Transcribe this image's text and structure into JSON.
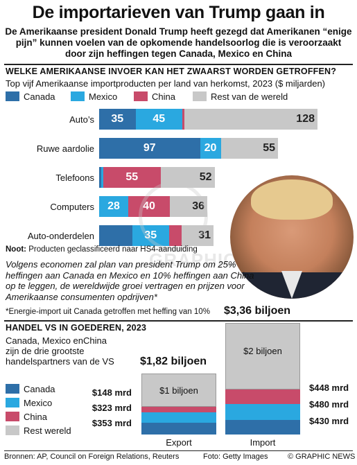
{
  "header": {
    "title": "De importarieven van Trump gaan in",
    "subtitle": "De Amerikaanse president Donald Trump heeft gezegd dat Amerikanen “enige pijn” kunnen voelen van de opkomende handelsoorlog die is veroorzaakt door zijn heffingen tegen Canada, Mexico en China"
  },
  "colors": {
    "canada": "#2e6fa8",
    "mexico": "#2aa8e0",
    "china": "#c84b6a",
    "rest": "#c8c8c8"
  },
  "chart_data": [
    {
      "type": "bar",
      "orientation": "horizontal",
      "stacked": true,
      "title": "Welke Amerikaanse invoer kan het zwaarst worden getroffen?",
      "subtitle": "Top vijf Amerikaanse importproducten per land van herkomst, 2023 ($ miljarden)",
      "categories": [
        "Auto’s",
        "Ruwe aardolie",
        "Telefoons",
        "Computers",
        "Auto-onderdelen"
      ],
      "series": [
        {
          "name": "Canada",
          "values": [
            35,
            97,
            2,
            0,
            32
          ],
          "labels": [
            "35",
            "97",
            "",
            "",
            ""
          ]
        },
        {
          "name": "Mexico",
          "values": [
            45,
            20,
            2,
            28,
            35
          ],
          "labels": [
            "45",
            "20",
            "",
            "28",
            "35"
          ]
        },
        {
          "name": "China",
          "values": [
            2,
            0,
            55,
            40,
            12
          ],
          "labels": [
            "",
            "",
            "55",
            "40",
            ""
          ]
        },
        {
          "name": "Rest van de wereld",
          "values": [
            128,
            55,
            52,
            36,
            31
          ],
          "labels": [
            "128",
            "55",
            "52",
            "36",
            "31"
          ]
        }
      ],
      "legend": "top",
      "grid": false
    },
    {
      "type": "bar",
      "stacked": true,
      "title": "Handel VS in goederen, 2023",
      "subtitle": "Canada, Mexico enChina zijn de drie grootste handelspartners van de VS",
      "categories": [
        "Export",
        "Import"
      ],
      "totals": [
        "$1,82 biljoen",
        "$3,36 biljoen"
      ],
      "series": [
        {
          "name": "Canada",
          "values": [
            353,
            430
          ],
          "labels": [
            "$353 mrd",
            "$430 mrd"
          ]
        },
        {
          "name": "Mexico",
          "values": [
            323,
            480
          ],
          "labels": [
            "$323 mrd",
            "$480 mrd"
          ]
        },
        {
          "name": "China",
          "values": [
            148,
            448
          ],
          "labels": [
            "$148 mrd",
            "$448 mrd"
          ]
        },
        {
          "name": "Rest van de wereld",
          "values": [
            1000,
            2000
          ],
          "labels": [
            "$1 biljoen",
            "$2 biljoen"
          ]
        }
      ],
      "legend": "left"
    }
  ],
  "section1": {
    "title": "Welke Amerikaanse invoer kan het zwaarst worden getroffen?",
    "subtitle": "Top vijf Amerikaanse importproducten per land van herkomst, 2023 ($ miljarden)",
    "legend": [
      "Canada",
      "Mexico",
      "China",
      "Rest van de wereld"
    ],
    "note": "Noot: Producten geclassificeerd naar HS4-aanduiding",
    "quote": "Volgens economen zal plan van president Trump om 25% heffingen aan Canada en Mexico en 10% heffingen aan China op te leggen, de wereldwijde groei vertragen en prijzen voor Amerikaanse consumenten opdrijven*",
    "footnote": "*Energie-import uit Canada getroffen met heffing van 10%"
  },
  "section2": {
    "title": "Handel VS in goederen, 2023",
    "subtitle": "Canada, Mexico enChina zijn de drie grootste handelspartners van de VS",
    "legend": [
      "Canada",
      "Mexico",
      "China",
      "Rest wereld"
    ]
  },
  "footer": {
    "sources": "Bronnen: AP, Council on Foreign Relations, Reuters",
    "photo": "Foto: Getty Images",
    "brand": "© GRAPHIC NEWS"
  }
}
